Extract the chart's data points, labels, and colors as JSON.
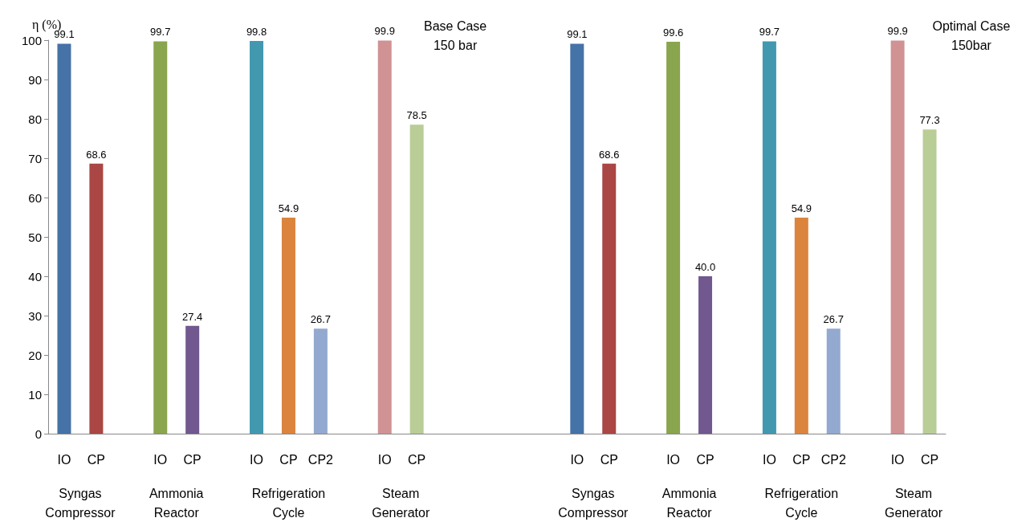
{
  "chart_data": {
    "type": "bar",
    "ylabel": "η (%)",
    "categories": [
      "IO",
      "CP",
      null,
      "IO",
      "CP",
      null,
      "IO",
      "CP",
      "CP2",
      null,
      "IO",
      "CP",
      null,
      null,
      null,
      null,
      "IO",
      "CP",
      null,
      "IO",
      "CP",
      null,
      "IO",
      "CP",
      "CP2",
      null,
      "IO",
      "CP"
    ],
    "values": [
      99.1,
      68.6,
      null,
      99.7,
      27.4,
      null,
      99.8,
      54.9,
      26.7,
      null,
      99.9,
      78.5,
      null,
      null,
      null,
      null,
      99.1,
      68.6,
      null,
      99.6,
      40.0,
      null,
      99.7,
      54.9,
      26.7,
      null,
      99.9,
      77.3
    ],
    "value_labels": [
      "99.1",
      "68.6",
      null,
      "99.7",
      "27.4",
      null,
      "99.8",
      "54.9",
      "26.7",
      null,
      "99.9",
      "78.5",
      null,
      null,
      null,
      null,
      "99.1",
      "68.6",
      null,
      "99.6",
      "40.0",
      null,
      "99.7",
      "54.9",
      "26.7",
      null,
      "99.9",
      "77.3"
    ],
    "colors": [
      "#4572a7",
      "#aa4643",
      null,
      "#89a54e",
      "#71588f",
      null,
      "#4198af",
      "#db843d",
      "#93a9cf",
      null,
      "#d09293",
      "#b9cd96",
      null,
      null,
      null,
      null,
      "#4572a7",
      "#aa4643",
      null,
      "#89a54e",
      "#71588f",
      null,
      "#4198af",
      "#db843d",
      "#93a9cf",
      null,
      "#d09293",
      "#b9cd96"
    ],
    "ylim": [
      0,
      100
    ],
    "yticks": [
      0,
      10,
      20,
      30,
      40,
      50,
      60,
      70,
      80,
      90,
      100
    ],
    "grid": false,
    "annotations": [
      "Base Case\n150 bar",
      "Syngas\nCompressor",
      "Ammonia\nReactor",
      "Refrigeration\nCycle",
      "Steam\nGenerator",
      "Optimal Case\n150bar",
      "Syngas\nCompressor",
      "Ammonia\nReactor",
      "Refrigeration\nCycle",
      "Steam\nGenerator"
    ]
  }
}
